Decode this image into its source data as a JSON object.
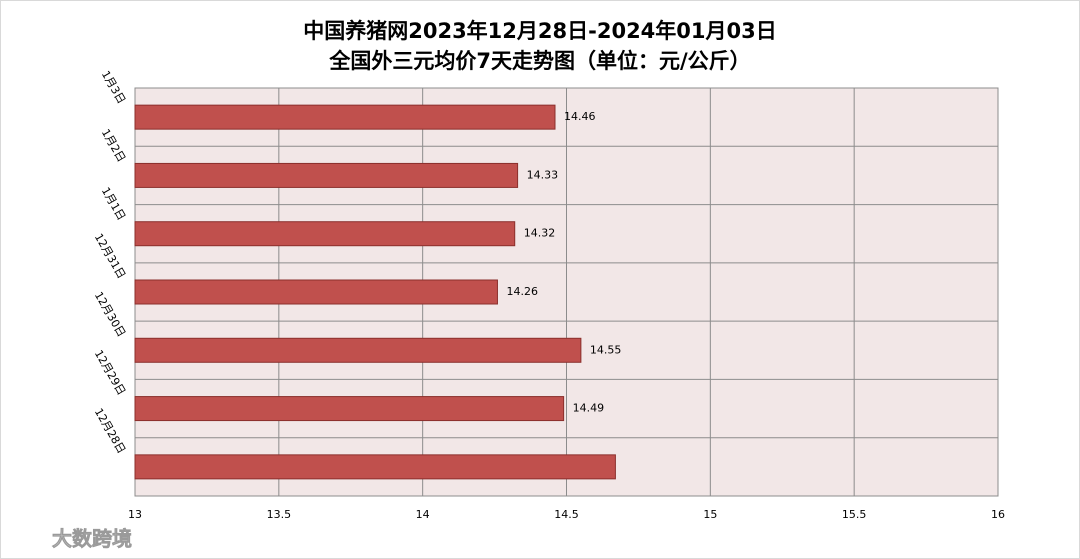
{
  "chart_data": {
    "type": "bar",
    "orientation": "horizontal",
    "title": "中国养猪网2023年12月28日-2024年01月03日",
    "subtitle": "全国外三元均价7天走势图（单位：元/公斤）",
    "categories": [
      "1月3日",
      "1月2日",
      "1月1日",
      "12月31日",
      "12月30日",
      "12月29日",
      "12月28日"
    ],
    "values": [
      14.46,
      14.33,
      14.32,
      14.26,
      14.55,
      14.49,
      14.67
    ],
    "value_labels": [
      "14.46",
      "14.33",
      "14.32",
      "14.26",
      "14.55",
      "14.49",
      null
    ],
    "color": "#c0504d",
    "xlim": [
      13,
      16
    ],
    "xticks": [
      13,
      13.5,
      14,
      14.5,
      15,
      15.5,
      16
    ],
    "grid": true,
    "watermark": "大数跨境"
  }
}
